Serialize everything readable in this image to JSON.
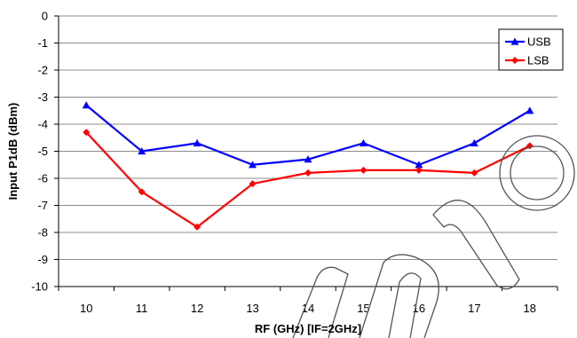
{
  "chart_data": {
    "type": "line",
    "title": "",
    "xlabel": "RF (GHz) [IF=2GHz]",
    "ylabel": "Input P1dB (dBm)",
    "x": [
      10,
      11,
      12,
      13,
      14,
      15,
      16,
      17,
      18
    ],
    "xticks": [
      "10",
      "11",
      "12",
      "13",
      "14",
      "15",
      "16",
      "17",
      "18"
    ],
    "ylim": [
      -10,
      0
    ],
    "yticks": [
      "0",
      "-1",
      "-2",
      "-3",
      "-4",
      "-5",
      "-6",
      "-7",
      "-8",
      "-9",
      "-10"
    ],
    "grid": true,
    "legend": "top-right",
    "series": [
      {
        "name": "USB",
        "color": "#0000ff",
        "marker": "triangle",
        "values": [
          -3.3,
          -5.0,
          -4.7,
          -5.5,
          -5.3,
          -4.7,
          -5.5,
          -4.7,
          -3.5
        ]
      },
      {
        "name": "LSB",
        "color": "#ff0000",
        "marker": "diamond",
        "values": [
          -4.3,
          -6.5,
          -7.8,
          -6.2,
          -5.8,
          -5.7,
          -5.7,
          -5.8,
          -4.8
        ]
      }
    ]
  },
  "watermark": {
    "text": "pro"
  }
}
